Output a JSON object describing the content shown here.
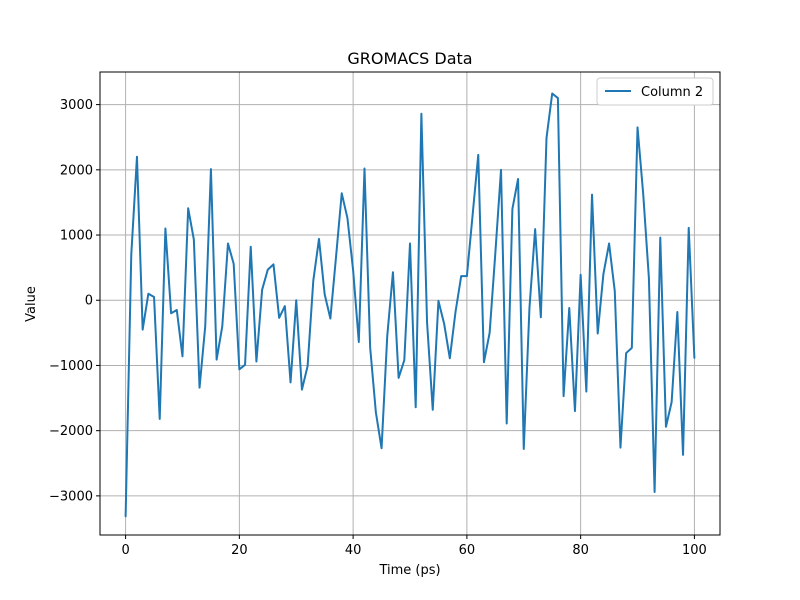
{
  "chart_data": {
    "type": "line",
    "title": "GROMACS Data",
    "xlabel": "Time (ps)",
    "ylabel": "Value",
    "xlim": [
      -4.5,
      104.5
    ],
    "ylim": [
      -3600,
      3500
    ],
    "xticks": [
      0,
      20,
      40,
      60,
      80,
      100
    ],
    "yticks": [
      -3000,
      -2000,
      -1000,
      0,
      1000,
      2000,
      3000
    ],
    "xtick_labels": [
      "0",
      "20",
      "40",
      "60",
      "80",
      "100"
    ],
    "ytick_labels": [
      "−3000",
      "−2000",
      "−1000",
      "0",
      "1000",
      "2000",
      "3000"
    ],
    "grid": true,
    "legend_position": "top-right",
    "series": [
      {
        "name": "Column 2",
        "color": "#1f77b4",
        "x": [
          0,
          1,
          2,
          3,
          4,
          5,
          6,
          7,
          8,
          9,
          10,
          11,
          12,
          13,
          14,
          15,
          16,
          17,
          18,
          19,
          20,
          21,
          22,
          23,
          24,
          25,
          26,
          27,
          28,
          29,
          30,
          31,
          32,
          33,
          34,
          35,
          36,
          37,
          38,
          39,
          40,
          41,
          42,
          43,
          44,
          45,
          46,
          47,
          48,
          49,
          50,
          51,
          52,
          53,
          54,
          55,
          56,
          57,
          58,
          59,
          60,
          61,
          62,
          63,
          64,
          65,
          66,
          67,
          68,
          69,
          70,
          71,
          72,
          73,
          74,
          75,
          76,
          77,
          78,
          79,
          80,
          81,
          82,
          83,
          84,
          85,
          86,
          87,
          88,
          89,
          90,
          91,
          92,
          93,
          94,
          95,
          96,
          97,
          98,
          99,
          100
        ],
        "y": [
          -3320,
          700,
          2200,
          -450,
          100,
          50,
          -1820,
          1100,
          -200,
          -150,
          -860,
          1410,
          930,
          -1340,
          -400,
          2010,
          -910,
          -400,
          870,
          560,
          -1060,
          -990,
          820,
          -940,
          160,
          470,
          550,
          -270,
          -90,
          -1260,
          0,
          -1370,
          -1010,
          300,
          940,
          90,
          -280,
          670,
          1640,
          1260,
          460,
          -640,
          2020,
          -730,
          -1720,
          -2270,
          -550,
          430,
          -1190,
          -920,
          870,
          -1640,
          2860,
          -340,
          -1680,
          -10,
          -360,
          -890,
          -180,
          370,
          370,
          1300,
          2230,
          -950,
          -500,
          720,
          2000,
          -1890,
          1400,
          1860,
          -2280,
          -120,
          1090,
          -260,
          2490,
          3170,
          3100,
          -1470,
          -120,
          -1700,
          390,
          -1400,
          1620,
          -510,
          400,
          870,
          140,
          -2260,
          -810,
          -730,
          2650,
          1630,
          340,
          -2940,
          960,
          -1940,
          -1560,
          -180,
          -2370,
          1110,
          -890
        ]
      }
    ]
  }
}
